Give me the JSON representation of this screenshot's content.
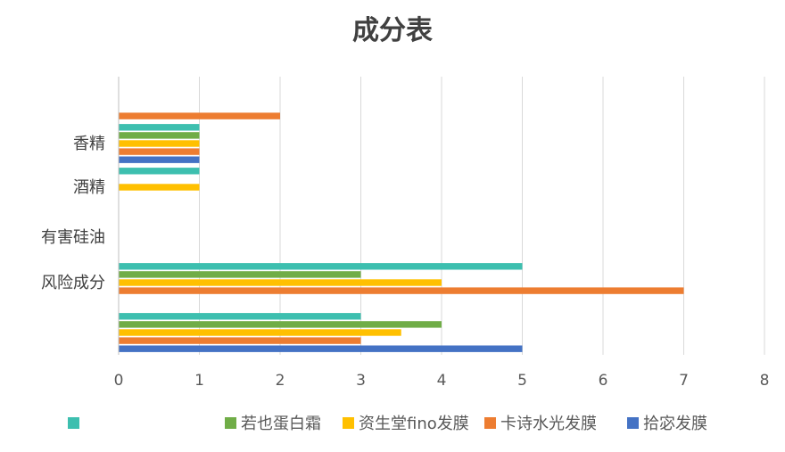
{
  "chart_data": {
    "type": "bar",
    "orientation": "horizontal",
    "title": "成分表",
    "categories": [
      "",
      "风险成分",
      "有害硅油",
      "酒精",
      "香精",
      ""
    ],
    "series": [
      {
        "name": "拾宓发膜",
        "color": "#4472C4",
        "values": [
          5,
          0,
          0,
          0,
          1,
          0
        ]
      },
      {
        "name": "卡诗水光发膜",
        "color": "#ED7D31",
        "values": [
          3,
          7,
          0,
          0,
          1,
          2
        ]
      },
      {
        "name": "资生堂fino发膜",
        "color": "#FFC000",
        "values": [
          3.5,
          4,
          0,
          1,
          1,
          0
        ]
      },
      {
        "name": "若也蛋白霜",
        "color": "#70AD47",
        "values": [
          4,
          3,
          0,
          0,
          1,
          0
        ]
      },
      {
        "name": "",
        "color": "#3DBFAF",
        "values": [
          3,
          5,
          0,
          1,
          1,
          0
        ]
      }
    ],
    "xlim": [
      0,
      8
    ],
    "xticks": [
      "0",
      "1",
      "2",
      "3",
      "4",
      "5",
      "6",
      "7",
      "8"
    ],
    "grid": true,
    "legend_position": "bottom"
  }
}
